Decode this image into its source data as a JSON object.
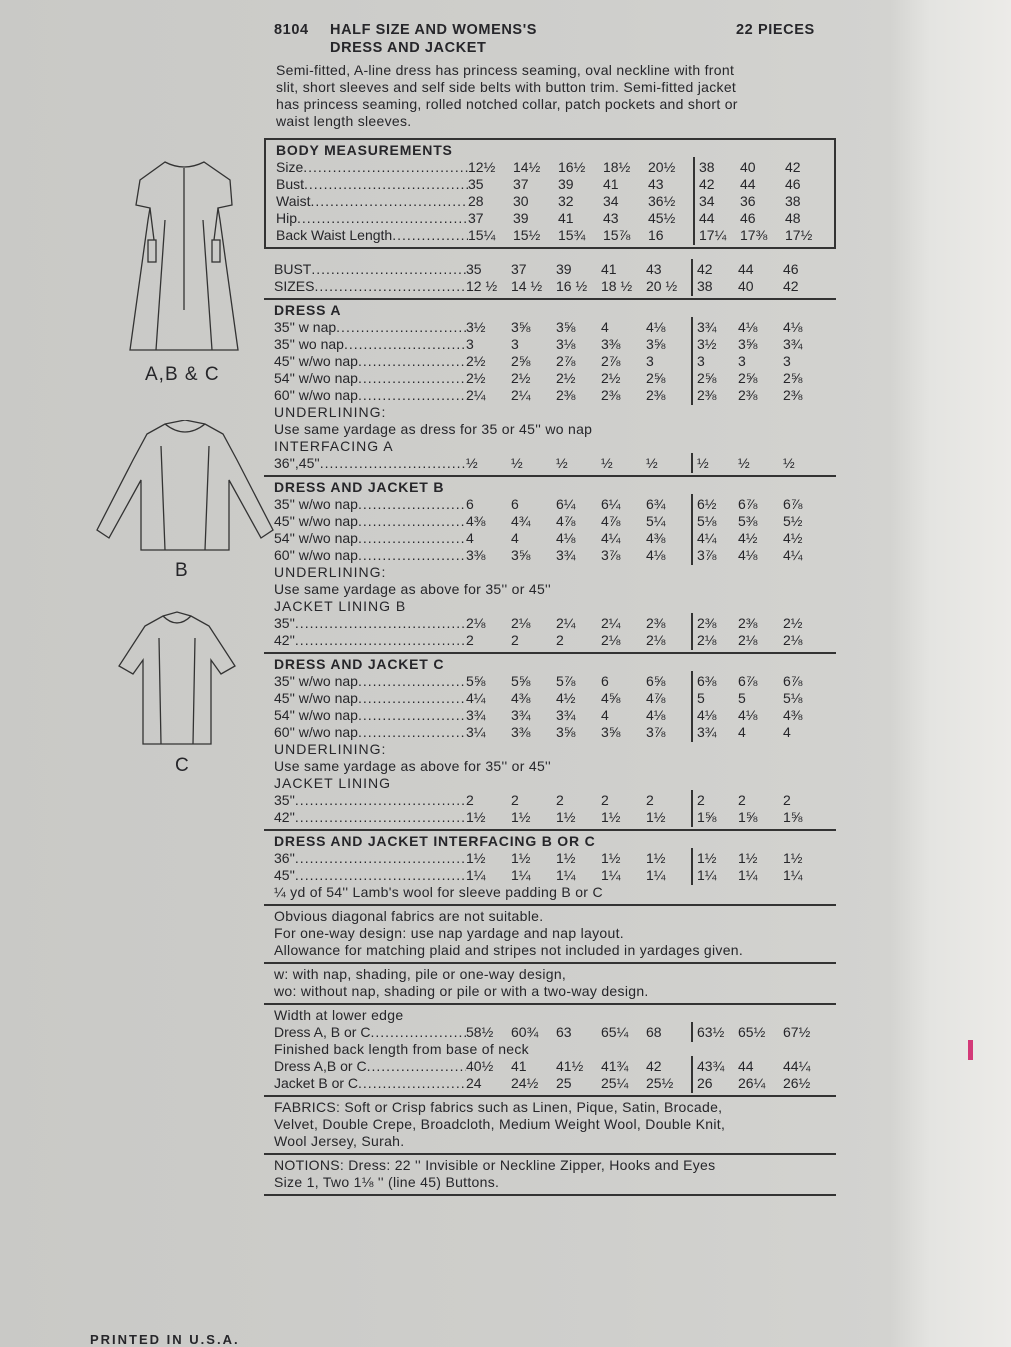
{
  "header": {
    "number": "8104",
    "title_line1": "HALF SIZE AND WOMENS'S",
    "title_line2": "DRESS AND JACKET",
    "pieces": "22 PIECES"
  },
  "description": [
    "Semi-fitted, A-line dress has princess seaming, oval neckline with front",
    "slit, short sleeves and self side belts with button trim. Semi-fitted jacket",
    "has princess seaming, rolled notched collar, patch pockets and short  or",
    "waist length sleeves."
  ],
  "views": {
    "abc_label": "A,B & C",
    "b_label": "B",
    "c_label": "C"
  },
  "sections": [
    {
      "box": true,
      "items": [
        {
          "heading": "BODY MEASUREMENTS"
        },
        {
          "label": "Size",
          "values": [
            "12½",
            "14½",
            "16½",
            "18½",
            "20½",
            "38",
            "40",
            "42"
          ]
        },
        {
          "label": "Bust",
          "values": [
            "35",
            "37",
            "39",
            "41",
            "43",
            "42",
            "44",
            "46"
          ]
        },
        {
          "label": "Waist",
          "values": [
            "28",
            "30",
            "32",
            "34",
            "36½",
            "34",
            "36",
            "38"
          ]
        },
        {
          "label": "Hip",
          "values": [
            "37",
            "39",
            "41",
            "43",
            "45½",
            "44",
            "46",
            "48"
          ]
        },
        {
          "label": "Back Waist Length",
          "values": [
            "15¼",
            "15½",
            "15¾",
            "15⅞",
            "16",
            "17¼",
            "17⅜",
            "17½"
          ]
        }
      ]
    },
    {
      "items": [
        {
          "label": "BUST",
          "values": [
            "35",
            "37",
            "39",
            "41",
            "43",
            "42",
            "44",
            "46"
          ]
        },
        {
          "label": "SIZES",
          "values": [
            "12 ½",
            "14 ½",
            "16 ½",
            "18 ½",
            "20 ½",
            "38",
            "40",
            "42"
          ]
        }
      ]
    },
    {
      "items": [
        {
          "heading": "DRESS A"
        },
        {
          "label": "35'' w nap",
          "values": [
            "3½",
            "3⅝",
            "3⅝",
            "4",
            "4⅛",
            "3¾",
            "4⅛",
            "4⅛"
          ]
        },
        {
          "label": "35'' wo nap",
          "values": [
            "3",
            "3",
            "3⅛",
            "3⅜",
            "3⅝",
            "3½",
            "3⅝",
            "3¾"
          ]
        },
        {
          "label": "45'' w/wo nap",
          "values": [
            "2½",
            "2⅝",
            "2⅞",
            "2⅞",
            "3",
            "3",
            "3",
            "3"
          ]
        },
        {
          "label": "54'' w/wo nap",
          "values": [
            "2½",
            "2½",
            "2½",
            "2½",
            "2⅝",
            "2⅝",
            "2⅝",
            "2⅝"
          ]
        },
        {
          "label": "60'' w/wo nap",
          "values": [
            "2¼",
            "2¼",
            "2⅜",
            "2⅜",
            "2⅜",
            "2⅜",
            "2⅜",
            "2⅜"
          ]
        },
        {
          "subhead": "UNDERLINING:"
        },
        {
          "text": "Use same yardage as dress for 35 or 45'' wo nap"
        },
        {
          "subhead": "INTERFACING A"
        },
        {
          "label": "36'',45''",
          "values": [
            "½",
            "½",
            "½",
            "½",
            "½",
            "½",
            "½",
            "½"
          ]
        }
      ]
    },
    {
      "items": [
        {
          "heading": "DRESS AND JACKET B"
        },
        {
          "label": "35'' w/wo nap",
          "values": [
            "6",
            "6",
            "6¼",
            "6¼",
            "6¾",
            "6½",
            "6⅞",
            "6⅞"
          ]
        },
        {
          "label": "45'' w/wo nap",
          "values": [
            "4⅜",
            "4¾",
            "4⅞",
            "4⅞",
            "5¼",
            "5⅛",
            "5⅜",
            "5½"
          ]
        },
        {
          "label": "54'' w/wo nap",
          "values": [
            "4",
            "4",
            "4⅛",
            "4¼",
            "4⅜",
            "4¼",
            "4½",
            "4½"
          ]
        },
        {
          "label": "60'' w/wo nap",
          "values": [
            "3⅜",
            "3⅝",
            "3¾",
            "3⅞",
            "4⅛",
            "3⅞",
            "4⅛",
            "4¼"
          ]
        },
        {
          "subhead": "UNDERLINING:"
        },
        {
          "text": "Use same yardage as above for 35'' or 45''"
        },
        {
          "subhead": "JACKET LINING B"
        },
        {
          "label": "35''",
          "values": [
            "2⅛",
            "2⅛",
            "2¼",
            "2¼",
            "2⅜",
            "2⅜",
            "2⅜",
            "2½"
          ]
        },
        {
          "label": "42''",
          "values": [
            "2",
            "2",
            "2",
            "2⅛",
            "2⅛",
            "2⅛",
            "2⅛",
            "2⅛"
          ]
        }
      ]
    },
    {
      "items": [
        {
          "heading": "DRESS AND JACKET C"
        },
        {
          "label": "35'' w/wo nap",
          "values": [
            "5⅝",
            "5⅝",
            "5⅞",
            "6",
            "6⅝",
            "6⅜",
            "6⅞",
            "6⅞"
          ]
        },
        {
          "label": "45'' w/wo nap",
          "values": [
            "4¼",
            "4⅜",
            "4½",
            "4⅝",
            "4⅞",
            "5",
            "5",
            "5⅛"
          ]
        },
        {
          "label": "54'' w/wo nap",
          "values": [
            "3¾",
            "3¾",
            "3¾",
            "4",
            "4⅛",
            "4⅛",
            "4⅛",
            "4⅜"
          ]
        },
        {
          "label": "60'' w/wo nap",
          "values": [
            "3¼",
            "3⅜",
            "3⅝",
            "3⅝",
            "3⅞",
            "3¾",
            "4",
            "4"
          ]
        },
        {
          "subhead": "UNDERLINING:"
        },
        {
          "text": "Use same yardage as above for 35'' or 45''"
        },
        {
          "subhead": "JACKET LINING"
        },
        {
          "label": "35''",
          "values": [
            "2",
            "2",
            "2",
            "2",
            "2",
            "2",
            "2",
            "2"
          ]
        },
        {
          "label": "42''",
          "values": [
            "1½",
            "1½",
            "1½",
            "1½",
            "1½",
            "1⅝",
            "1⅝",
            "1⅝"
          ]
        }
      ]
    },
    {
      "items": [
        {
          "heading": "DRESS AND JACKET INTERFACING B OR C"
        },
        {
          "label": "36''",
          "values": [
            "1½",
            "1½",
            "1½",
            "1½",
            "1½",
            "1½",
            "1½",
            "1½"
          ]
        },
        {
          "label": "45''",
          "values": [
            "1¼",
            "1¼",
            "1¼",
            "1¼",
            "1¼",
            "1¼",
            "1¼",
            "1¼"
          ]
        },
        {
          "text": "¼ yd of 54'' Lamb's wool for sleeve padding B or C"
        }
      ]
    },
    {
      "items": [
        {
          "text": "Obvious diagonal fabrics are not suitable."
        },
        {
          "text": "For one-way design: use nap yardage and nap layout."
        },
        {
          "text": "Allowance for matching plaid and stripes not included in yardages given."
        }
      ]
    },
    {
      "items": [
        {
          "text": "w: with nap, shading, pile or one-way design,"
        },
        {
          "text": "wo: without nap, shading or pile or with a two-way design."
        }
      ]
    },
    {
      "items": [
        {
          "text": "Width at lower edge"
        },
        {
          "label": "Dress A, B or C",
          "values": [
            "58½",
            "60¾",
            "63",
            "65¼",
            "68",
            "63½",
            "65½",
            "67½"
          ]
        },
        {
          "text": "Finished back length from base of neck"
        },
        {
          "label": "Dress A,B or C",
          "values": [
            "40½",
            "41",
            "41½",
            "41¾",
            "42",
            "43¾",
            "44",
            "44¼"
          ]
        },
        {
          "label": "Jacket B or C",
          "values": [
            "24",
            "24½",
            "25",
            "25¼",
            "25½",
            "26",
            "26¼",
            "26½"
          ]
        }
      ]
    },
    {
      "items": [
        {
          "text": "FABRICS: Soft or Crisp fabrics such as Linen, Pique, Satin, Brocade,"
        },
        {
          "text": "Velvet, Double Crepe, Broadcloth, Medium Weight Wool, Double Knit,"
        },
        {
          "text": "Wool Jersey, Surah."
        }
      ]
    },
    {
      "items": [
        {
          "text": "NOTIONS: Dress: 22 '' Invisible or Neckline Zipper, Hooks and Eyes"
        },
        {
          "text": "Size 1, Two 1⅛ '' (line 45) Buttons."
        }
      ]
    }
  ],
  "footer": {
    "printed": "PRINTED IN U.S.A."
  },
  "colors": {
    "paper": "#cfcfcc",
    "ink": "#26262a",
    "pink_mark": "#d33a78"
  }
}
